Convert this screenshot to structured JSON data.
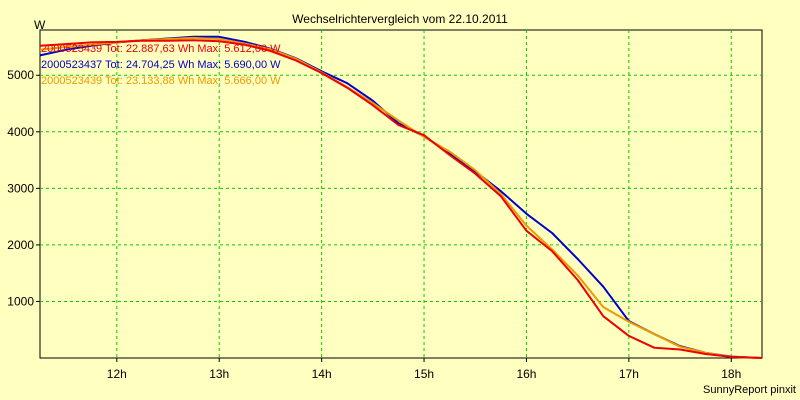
{
  "chart_data": {
    "type": "line",
    "title": "Wechselrichtervergleich vom 22.10.2011",
    "ylabel": "W",
    "xlabel": "",
    "footer": "SunnyReport pinxit",
    "grid": true,
    "legend_position": "top-left",
    "xlim": [
      11.25,
      18.3
    ],
    "ylim": [
      0,
      5800
    ],
    "x_ticks": [
      {
        "value": 12,
        "label": "12h"
      },
      {
        "value": 13,
        "label": "13h"
      },
      {
        "value": 14,
        "label": "14h"
      },
      {
        "value": 15,
        "label": "15h"
      },
      {
        "value": 16,
        "label": "16h"
      },
      {
        "value": 17,
        "label": "17h"
      },
      {
        "value": 18,
        "label": "18h"
      }
    ],
    "y_ticks": [
      {
        "value": 1000,
        "label": "1000"
      },
      {
        "value": 2000,
        "label": "2000"
      },
      {
        "value": 3000,
        "label": "3000"
      },
      {
        "value": 4000,
        "label": "4000"
      },
      {
        "value": 5000,
        "label": "5000"
      }
    ],
    "series": [
      {
        "name": "2000523437 Tot: 24.704,25 Wh Max: 5.690,00 W",
        "color": "#0000cc",
        "points": [
          [
            11.25,
            5350
          ],
          [
            11.5,
            5450
          ],
          [
            11.75,
            5520
          ],
          [
            12,
            5580
          ],
          [
            12.25,
            5620
          ],
          [
            12.5,
            5650
          ],
          [
            12.75,
            5680
          ],
          [
            13,
            5680
          ],
          [
            13.25,
            5590
          ],
          [
            13.5,
            5470
          ],
          [
            13.75,
            5300
          ],
          [
            14,
            5070
          ],
          [
            14.25,
            4860
          ],
          [
            14.5,
            4550
          ],
          [
            14.75,
            4150
          ],
          [
            15,
            3920
          ],
          [
            15.25,
            3620
          ],
          [
            15.5,
            3300
          ],
          [
            15.75,
            2950
          ],
          [
            16,
            2550
          ],
          [
            16.25,
            2210
          ],
          [
            16.5,
            1750
          ],
          [
            16.75,
            1260
          ],
          [
            17,
            650
          ],
          [
            17.25,
            420
          ],
          [
            17.5,
            210
          ],
          [
            17.75,
            90
          ],
          [
            18,
            25
          ],
          [
            18.3,
            0
          ]
        ]
      },
      {
        "name": "2000523439 Tot: 22.887,63 Wh Max: 5.612,00 W",
        "color": "#ee0000",
        "points": [
          [
            11.25,
            5520
          ],
          [
            11.5,
            5550
          ],
          [
            11.75,
            5580
          ],
          [
            12,
            5590
          ],
          [
            12.25,
            5610
          ],
          [
            12.5,
            5610
          ],
          [
            12.75,
            5620
          ],
          [
            13,
            5600
          ],
          [
            13.25,
            5540
          ],
          [
            13.5,
            5430
          ],
          [
            13.75,
            5260
          ],
          [
            14,
            5040
          ],
          [
            14.25,
            4780
          ],
          [
            14.5,
            4470
          ],
          [
            14.75,
            4120
          ],
          [
            15,
            3940
          ],
          [
            15.25,
            3590
          ],
          [
            15.5,
            3260
          ],
          [
            15.75,
            2860
          ],
          [
            16,
            2250
          ],
          [
            16.25,
            1890
          ],
          [
            16.5,
            1380
          ],
          [
            16.75,
            740
          ],
          [
            17,
            390
          ],
          [
            17.25,
            180
          ],
          [
            17.5,
            150
          ],
          [
            17.75,
            70
          ],
          [
            18,
            20
          ],
          [
            18.3,
            0
          ]
        ]
      },
      {
        "name": "2000523439 Tot: 23.133,88 Wh Max: 5.666,00 W",
        "color": "#ee9900",
        "points": [
          [
            11.25,
            5450
          ],
          [
            11.5,
            5500
          ],
          [
            11.75,
            5540
          ],
          [
            12,
            5580
          ],
          [
            12.25,
            5620
          ],
          [
            12.5,
            5640
          ],
          [
            12.75,
            5660
          ],
          [
            13,
            5640
          ],
          [
            13.25,
            5560
          ],
          [
            13.5,
            5460
          ],
          [
            13.75,
            5290
          ],
          [
            14,
            5050
          ],
          [
            14.25,
            4790
          ],
          [
            14.5,
            4510
          ],
          [
            14.75,
            4200
          ],
          [
            15,
            3910
          ],
          [
            15.25,
            3650
          ],
          [
            15.5,
            3320
          ],
          [
            15.75,
            2900
          ],
          [
            16,
            2340
          ],
          [
            16.25,
            1920
          ],
          [
            16.5,
            1460
          ],
          [
            16.75,
            900
          ],
          [
            17,
            640
          ],
          [
            17.25,
            420
          ],
          [
            17.5,
            200
          ],
          [
            17.75,
            90
          ],
          [
            18,
            20
          ],
          [
            18.3,
            0
          ]
        ]
      }
    ]
  }
}
